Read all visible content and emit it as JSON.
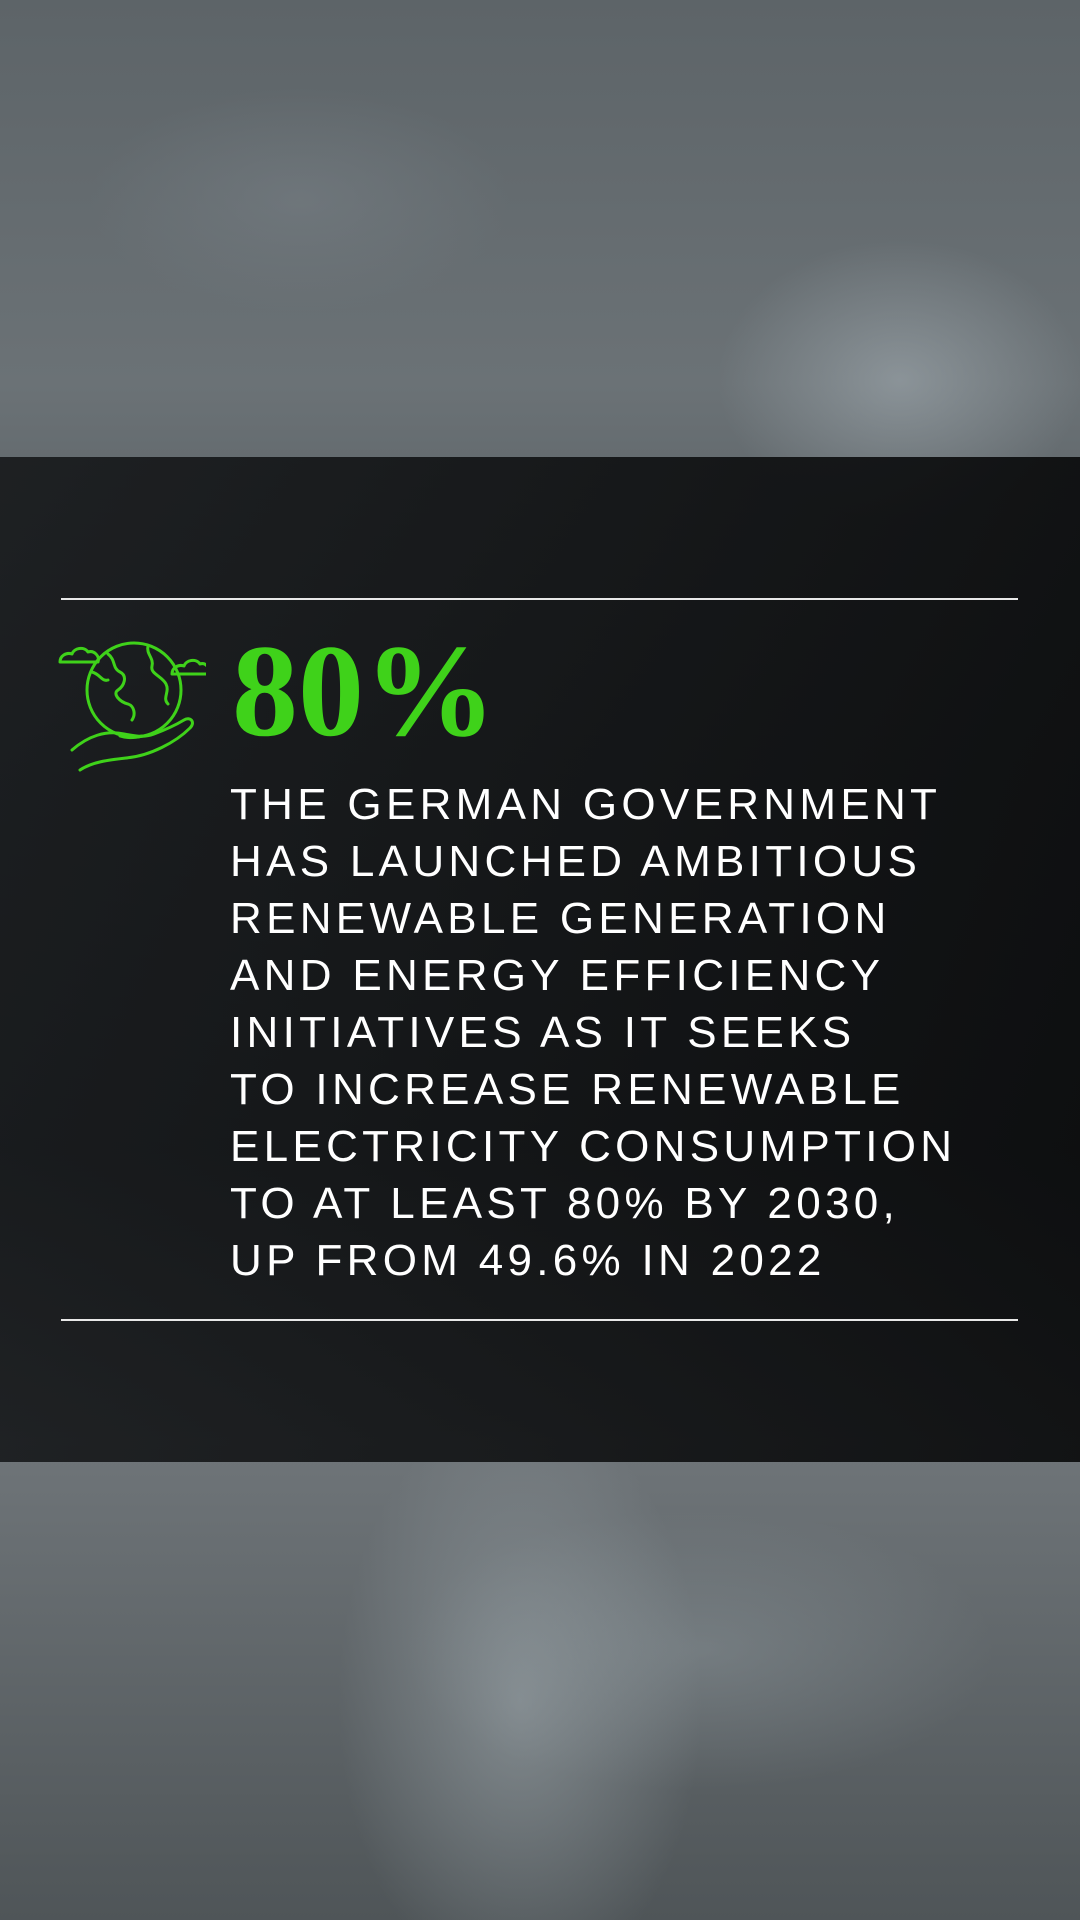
{
  "stat": {
    "value": "80%"
  },
  "body": {
    "lines": [
      "THE GERMAN GOVERNMENT",
      "HAS LAUNCHED AMBITIOUS",
      "RENEWABLE GENERATION",
      "AND ENERGY EFFICIENCY",
      "INITIATIVES AS IT SEEKS",
      "TO INCREASE RENEWABLE",
      "ELECTRICITY CONSUMPTION",
      "TO AT LEAST 80% BY 2030,",
      "UP FROM 49.6% IN 2022"
    ]
  }
}
